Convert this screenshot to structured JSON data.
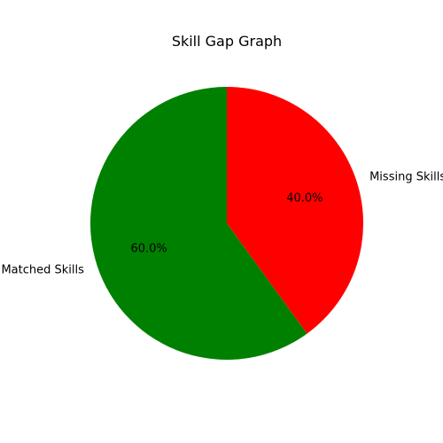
{
  "chart_data": {
    "type": "pie",
    "title": "Skill Gap Graph",
    "slices": [
      {
        "label": "Missing Skills",
        "value": 40.0,
        "pct_label": "40.0%",
        "color": "#ff0000"
      },
      {
        "label": "Matched Skills",
        "value": 60.0,
        "pct_label": "60.0%",
        "color": "#008000"
      }
    ],
    "start_angle_deg": 90,
    "direction": "clockwise"
  }
}
